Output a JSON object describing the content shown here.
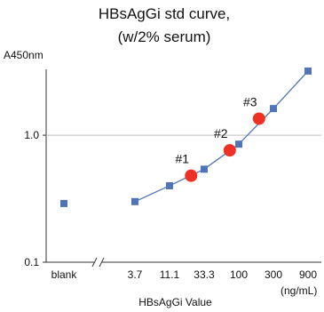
{
  "chart_data": {
    "type": "line",
    "title_line1": "HBsAgGi std curve,",
    "title_line2": "(w/2% serum)",
    "ylabel": "A450nm",
    "xlabel": "HBsAgGi Value",
    "x_unit": "(ng/mL)",
    "y_scale": "log",
    "ylim": [
      0.1,
      3.3
    ],
    "y_ticks": [
      {
        "label": "0.1",
        "value": 0.1
      },
      {
        "label": "1.0",
        "value": 1.0
      }
    ],
    "gridline_at": 1.0,
    "x_scale": "log",
    "x_ticks": [
      "blank",
      "3.7",
      "11.1",
      "33.3",
      "100",
      "300",
      "900"
    ],
    "x_tick_values": [
      3.7,
      11.1,
      33.3,
      100,
      300,
      900
    ],
    "axis_break": true,
    "blank_point": {
      "label": "blank",
      "y": 0.29
    },
    "standard_series": {
      "color": "#4f74b8",
      "points": [
        {
          "x": 3.7,
          "y": 0.3
        },
        {
          "x": 11.1,
          "y": 0.4
        },
        {
          "x": 33.3,
          "y": 0.54
        },
        {
          "x": 100,
          "y": 0.85
        },
        {
          "x": 300,
          "y": 1.62
        },
        {
          "x": 900,
          "y": 3.2
        }
      ]
    },
    "samples": {
      "color": "#ee3124",
      "points": [
        {
          "label": "#1",
          "x": 22,
          "y": 0.48
        },
        {
          "label": "#2",
          "x": 75,
          "y": 0.76
        },
        {
          "label": "#3",
          "x": 190,
          "y": 1.35
        }
      ]
    }
  }
}
